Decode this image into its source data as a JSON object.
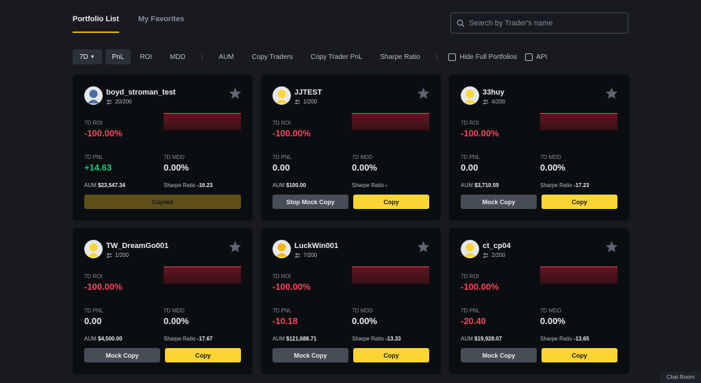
{
  "tabs": {
    "portfolio_list": "Portfolio List",
    "my_favorites": "My Favorites"
  },
  "search": {
    "placeholder": "Search by Trader's name"
  },
  "filters": {
    "period": "7D",
    "pnl": "PnL",
    "roi": "ROI",
    "mdd": "MDD",
    "aum": "AUM",
    "copy_traders": "Copy Traders",
    "copy_trader_pnl": "Copy Trader PnL",
    "sharpe_ratio": "Sharpe Ratio",
    "hide_full": "Hide Full Portfolios",
    "api": "API"
  },
  "labels": {
    "roi": "7D ROI",
    "pnl": "7D PNL",
    "mdd": "7D MDD",
    "aum": "AUM",
    "sharpe": "Sharpe Ratio"
  },
  "cards": [
    {
      "name": "boyd_stroman_test",
      "copiers": "20/200",
      "roi": "-100.00%",
      "pnl": "+14.63",
      "mdd": "0.00%",
      "aum": "$23,547.34",
      "sharpe": "-16.23",
      "btn_left": "Copied",
      "btn_right": ""
    },
    {
      "name": "JJTEST",
      "copiers": "1/200",
      "roi": "-100.00%",
      "pnl": "0.00",
      "mdd": "0.00%",
      "aum": "$100.00",
      "sharpe": "-",
      "btn_left": "Stop Mock Copy",
      "btn_right": "Copy"
    },
    {
      "name": "33huy",
      "copiers": "4/200",
      "roi": "-100.00%",
      "pnl": "0.00",
      "mdd": "0.00%",
      "aum": "$3,710.59",
      "sharpe": "-17.23",
      "btn_left": "Mock Copy",
      "btn_right": "Copy"
    },
    {
      "name": "TW_DreamGo001",
      "copiers": "1/200",
      "roi": "-100.00%",
      "pnl": "0.00",
      "mdd": "0.00%",
      "aum": "$4,500.00",
      "sharpe": "-17.67",
      "btn_left": "Mock Copy",
      "btn_right": "Copy"
    },
    {
      "name": "LuckWin001",
      "copiers": "7/200",
      "roi": "-100.00%",
      "pnl": "-10.18",
      "mdd": "0.00%",
      "aum": "$121,688.71",
      "sharpe": "-13.33",
      "btn_left": "Mock Copy",
      "btn_right": "Copy"
    },
    {
      "name": "ct_cp04",
      "copiers": "2/200",
      "roi": "-100.00%",
      "pnl": "-20.40",
      "mdd": "0.00%",
      "aum": "$19,928.07",
      "sharpe": "-13.65",
      "btn_left": "Mock Copy",
      "btn_right": "Copy"
    }
  ],
  "chat": "Chat Room",
  "colors": {
    "accent": "#fcd535",
    "negative": "#f6465d",
    "positive": "#0ecb81",
    "card": "#0b0e11",
    "page": "#181a20"
  }
}
